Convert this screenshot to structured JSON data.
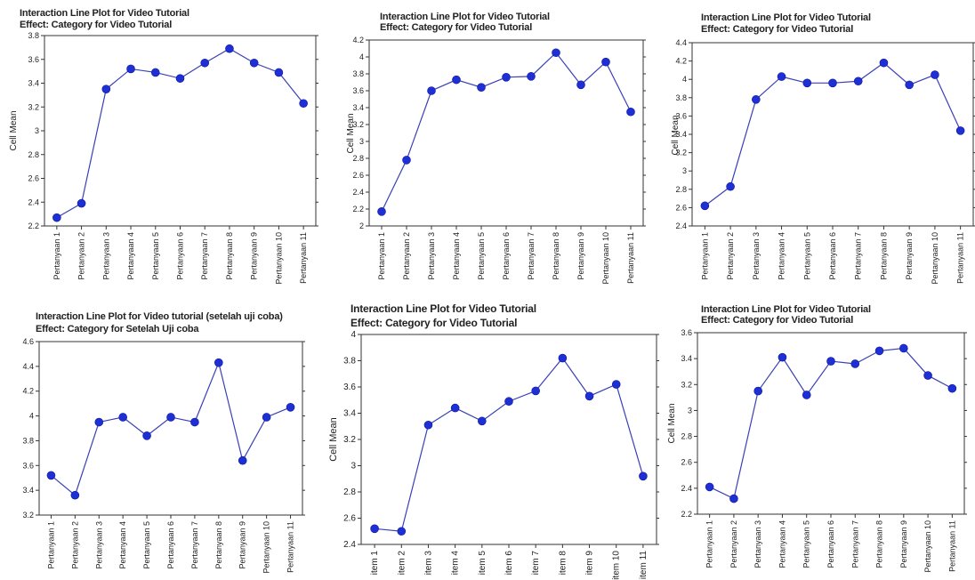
{
  "colors": {
    "series": "#1e2fd6",
    "line": "#3a3fb8",
    "axis": "#333333"
  },
  "chart_data": [
    {
      "type": "line",
      "title": "Interaction Line Plot for Video Tutorial",
      "subtitle": "Effect: Category for Video Tutorial",
      "ylabel": "Cell Mean",
      "ylim": [
        2.2,
        3.8
      ],
      "yticks": [
        "2.2",
        "2.4",
        "2.6",
        "2.8",
        "3",
        "3.2",
        "3.4",
        "3.6",
        "3.8"
      ],
      "categories": [
        "Pertanyaan 1",
        "Pertanyaan 2",
        "Pertanyaan 3",
        "Pertanyaan 4",
        "Pertanyaan 5",
        "Pertanyaan 6",
        "Pertanyaan 7",
        "Pertanyaan 8",
        "Pertanyaan 9",
        "Pertanyaan 10",
        "Pertanyaan 11"
      ],
      "values": [
        2.27,
        2.39,
        3.35,
        3.52,
        3.49,
        3.44,
        3.57,
        3.69,
        3.57,
        3.49,
        3.23
      ]
    },
    {
      "type": "line",
      "title": "Interaction Line Plot for Video Tutorial",
      "subtitle": "Effect: Category for Video Tutorial",
      "ylabel": "Cell Mean",
      "ylim": [
        2.0,
        4.2
      ],
      "yticks": [
        "2",
        "2.2",
        "2.4",
        "2.6",
        "2.8",
        "3",
        "3.2",
        "3.4",
        "3.6",
        "3.8",
        "4",
        "4.2"
      ],
      "categories": [
        "Pertanyaan 1",
        "Pertanyaan 2",
        "Pertanyaan 3",
        "Pertanyaan 4",
        "Pertanyaan 5",
        "Pertanyaan 6",
        "Pertanyaan 7",
        "Pertanyaan 8",
        "Pertanyaan 9",
        "Pertanyaan 10",
        "Pertanyaan 11"
      ],
      "values": [
        2.17,
        2.78,
        3.6,
        3.73,
        3.64,
        3.76,
        3.77,
        4.05,
        3.67,
        3.94,
        3.35
      ]
    },
    {
      "type": "line",
      "title": "Interaction Line Plot for Video Tutorial",
      "subtitle": "Effect: Category for Video Tutorial",
      "ylabel": "Cell Mean",
      "ylim": [
        2.4,
        4.4
      ],
      "yticks": [
        "2.4",
        "2.6",
        "2.8",
        "3",
        "3.2",
        "3.4",
        "3.6",
        "3.8",
        "4",
        "4.2",
        "4.4"
      ],
      "categories": [
        "Pertanyaan 1",
        "Pertanyaan 2",
        "Pertanyaan 3",
        "Pertanyaan 4",
        "Pertanyaan 5",
        "Pertanyaan 6",
        "Pertanyaan 7",
        "Pertanyaan 8",
        "Pertanyaan 9",
        "Pertanyaan 10",
        "Pertanyaan 11"
      ],
      "values": [
        2.62,
        2.83,
        3.78,
        4.03,
        3.96,
        3.96,
        3.98,
        4.18,
        3.94,
        4.05,
        3.44
      ]
    },
    {
      "type": "line",
      "title": "Interaction Line Plot for Video tutorial (setelah uji coba)",
      "subtitle": "Effect: Category for Setelah Uji coba",
      "ylabel": "",
      "ylim": [
        3.2,
        4.6
      ],
      "yticks": [
        "3.2",
        "3.4",
        "3.6",
        "3.8",
        "4",
        "4.2",
        "4.4",
        "4.6"
      ],
      "categories": [
        "Pertanyaan 1",
        "Pertanyaan 2",
        "Pertanyaan 3",
        "Pertanyaan 4",
        "Pertanyaan 5",
        "Pertanyaan 6",
        "Pertanyaan 7",
        "Pertanyaan 8",
        "Pertanyaan 9",
        "Pertanyaan 10",
        "Pertanyaan 11"
      ],
      "values": [
        3.52,
        3.36,
        3.95,
        3.99,
        3.84,
        3.99,
        3.95,
        4.43,
        3.64,
        3.99,
        4.07
      ]
    },
    {
      "type": "line",
      "title": "Interaction Line Plot for Video Tutorial",
      "subtitle": "Effect: Category for Video Tutorial",
      "ylabel": "Cell Mean",
      "ylim": [
        2.4,
        4.0
      ],
      "yticks": [
        "2.4",
        "2.6",
        "2.8",
        "3",
        "3.2",
        "3.4",
        "3.6",
        "3.8",
        "4"
      ],
      "categories": [
        "item 1",
        "item 2",
        "item 3",
        "item 4",
        "item 5",
        "item 6",
        "item 7",
        "item 8",
        "item 9",
        "item 10",
        "item 11"
      ],
      "values": [
        2.52,
        2.5,
        3.31,
        3.44,
        3.34,
        3.49,
        3.57,
        3.82,
        3.53,
        3.62,
        2.92
      ]
    },
    {
      "type": "line",
      "title": "Interaction Line Plot for Video Tutorial",
      "subtitle": "Effect: Category for Video Tutorial",
      "ylabel": "Cell Mean",
      "ylim": [
        2.2,
        3.6
      ],
      "yticks": [
        "2.2",
        "2.4",
        "2.6",
        "2.8",
        "3",
        "3.2",
        "3.4",
        "3.6"
      ],
      "categories": [
        "Pertanyaan 1",
        "Pertanyaan 2",
        "Pertanyaan 3",
        "Pertanyaan 4",
        "Pertanyaan 5",
        "Pertanyaan 6",
        "Pertanyaan 7",
        "Pertanyaan 8",
        "Pertanyaan 9",
        "Pertanyaan 10",
        "Pertanyaan 11"
      ],
      "values": [
        2.41,
        2.32,
        3.15,
        3.41,
        3.12,
        3.38,
        3.36,
        3.46,
        3.48,
        3.27,
        3.17
      ]
    }
  ]
}
